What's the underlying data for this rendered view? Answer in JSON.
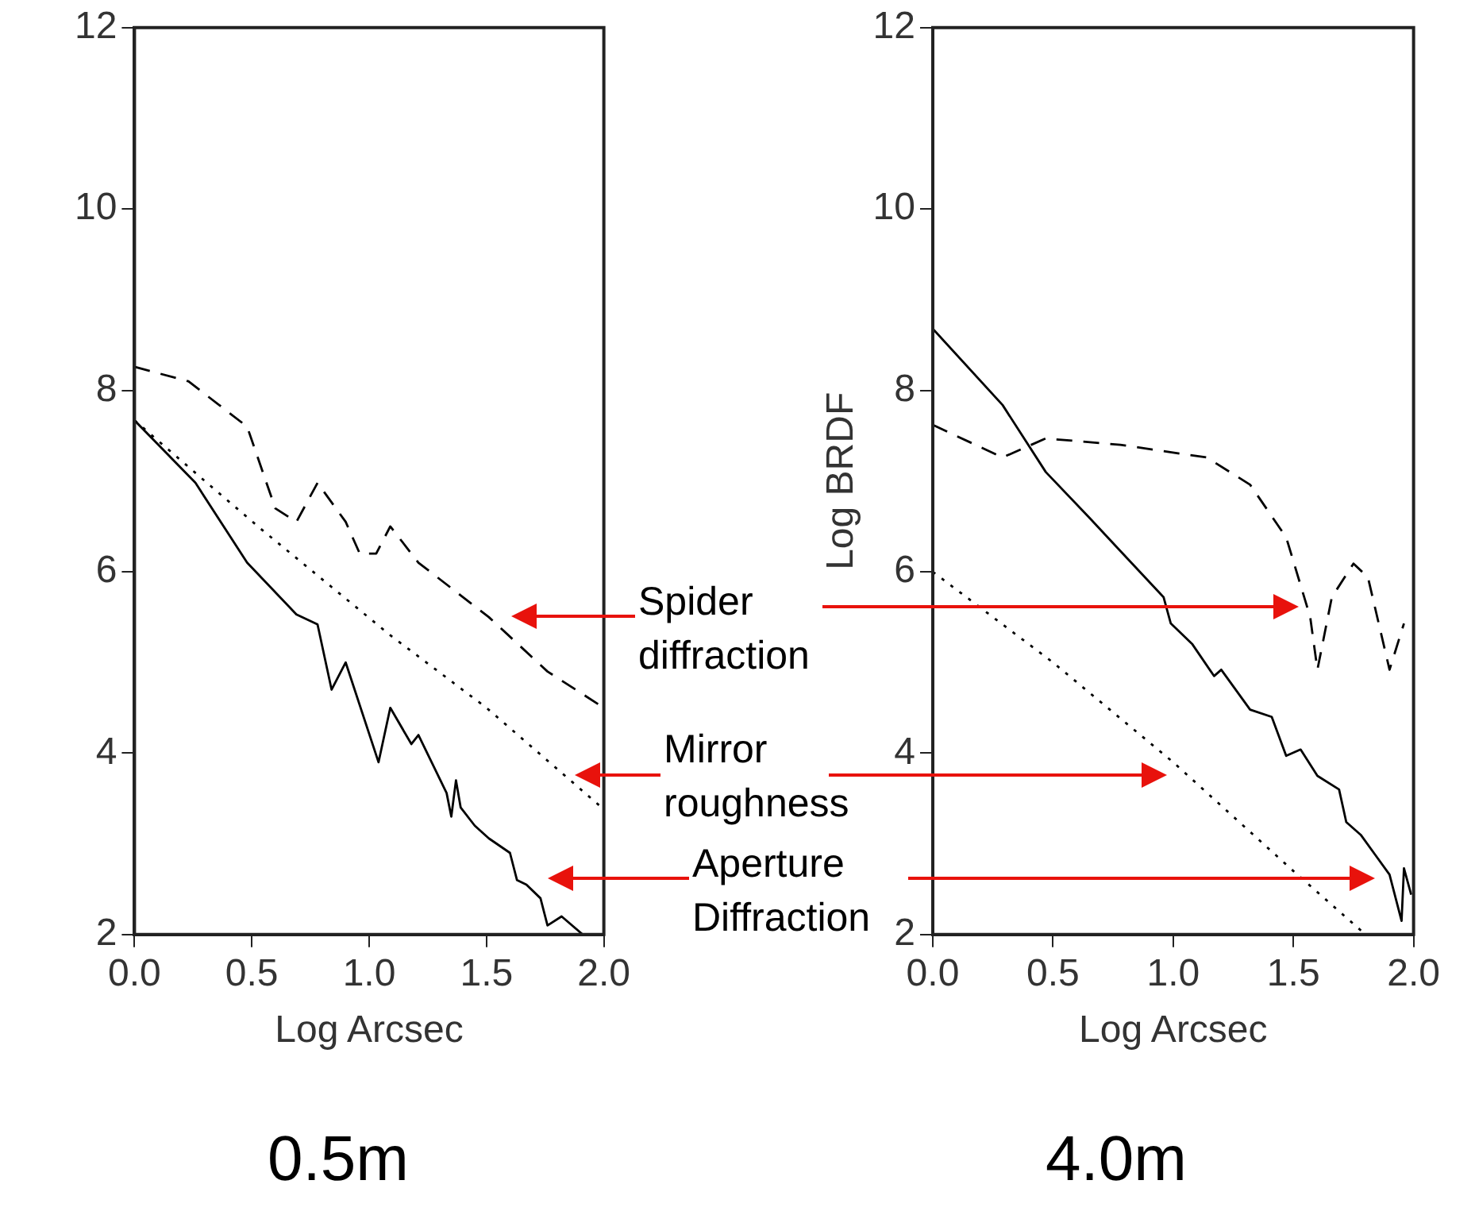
{
  "chart_data": [
    {
      "type": "line",
      "title": "0.5m",
      "xlabel": "Log Arcsec",
      "xlim": [
        0,
        2
      ],
      "xticks": [
        {
          "value": 0,
          "label": "0.0"
        },
        {
          "value": 0.5,
          "label": "0.5"
        },
        {
          "value": 1,
          "label": "1.0"
        },
        {
          "value": 1.5,
          "label": "1.5"
        },
        {
          "value": 2,
          "label": "2.0"
        }
      ],
      "ylim": [
        2,
        12
      ],
      "yticks": [
        2,
        4,
        6,
        8,
        10,
        12
      ],
      "grid": false,
      "legend": false,
      "marker": "none",
      "annotations": [
        "Spider diffraction",
        "Mirror roughness",
        "Aperture Diffraction"
      ],
      "series": [
        {
          "color": "#000000",
          "line_style": "dashed",
          "x": [
            0,
            0.23,
            0.48,
            0.6,
            0.69,
            0.78,
            0.9,
            0.96,
            1.03,
            1.09,
            1.21,
            1.51,
            1.76,
            2.0
          ],
          "values": [
            8.26,
            8.1,
            7.6,
            6.7,
            6.55,
            6.98,
            6.55,
            6.2,
            6.2,
            6.5,
            6.1,
            5.5,
            4.9,
            4.5
          ]
        },
        {
          "color": "#000000",
          "line_style": "dotted",
          "x": [
            0,
            0.3,
            0.54,
            1.09,
            1.5,
            2.0
          ],
          "values": [
            7.67,
            7.0,
            6.47,
            5.3,
            4.5,
            3.38
          ]
        },
        {
          "color": "#000000",
          "line_style": "solid",
          "x": [
            0,
            0.26,
            0.48,
            0.69,
            0.78,
            0.84,
            0.9,
            1.04,
            1.09,
            1.18,
            1.21,
            1.33,
            1.35,
            1.37,
            1.39,
            1.45,
            1.51,
            1.6,
            1.63,
            1.67,
            1.73,
            1.76,
            1.82,
            1.91
          ],
          "values": [
            7.67,
            6.98,
            6.1,
            5.53,
            5.42,
            4.7,
            5.0,
            3.9,
            4.5,
            4.1,
            4.2,
            3.56,
            3.3,
            3.7,
            3.4,
            3.2,
            3.06,
            2.9,
            2.6,
            2.55,
            2.4,
            2.1,
            2.2,
            2.0
          ]
        }
      ]
    },
    {
      "type": "line",
      "title": "4.0m",
      "xlabel": "Log Arcsec",
      "ylabel": "Log BRDF",
      "xlim": [
        0,
        2
      ],
      "xticks": [
        {
          "value": 0,
          "label": "0.0"
        },
        {
          "value": 0.5,
          "label": "0.5"
        },
        {
          "value": 1,
          "label": "1.0"
        },
        {
          "value": 1.5,
          "label": "1.5"
        },
        {
          "value": 2,
          "label": "2.0"
        }
      ],
      "ylim": [
        2,
        12
      ],
      "yticks": [
        2,
        4,
        6,
        8,
        10,
        12
      ],
      "grid": false,
      "legend": false,
      "marker": "none",
      "series": [
        {
          "color": "#000000",
          "line_style": "solid",
          "x": [
            0,
            0.29,
            0.47,
            0.65,
            0.78,
            0.96,
            0.99,
            1.08,
            1.17,
            1.2,
            1.32,
            1.41,
            1.47,
            1.53,
            1.6,
            1.69,
            1.72,
            1.78,
            1.84,
            1.9,
            1.95,
            1.96,
            1.99
          ],
          "values": [
            8.68,
            7.84,
            7.1,
            6.6,
            6.23,
            5.72,
            5.43,
            5.2,
            4.85,
            4.92,
            4.48,
            4.4,
            3.97,
            4.04,
            3.75,
            3.6,
            3.24,
            3.1,
            2.88,
            2.66,
            2.15,
            2.73,
            2.44
          ]
        },
        {
          "color": "#000000",
          "line_style": "dashed",
          "x": [
            0,
            0.29,
            0.47,
            0.78,
            1.14,
            1.32,
            1.47,
            1.57,
            1.6,
            1.66,
            1.75,
            1.81,
            1.9,
            1.96
          ],
          "values": [
            7.62,
            7.26,
            7.47,
            7.4,
            7.26,
            6.96,
            6.38,
            5.5,
            4.92,
            5.72,
            6.09,
            5.94,
            4.92,
            5.43
          ]
        },
        {
          "color": "#000000",
          "line_style": "dotted",
          "x": [
            0,
            0.5,
            1.0,
            1.5,
            1.8
          ],
          "values": [
            6.0,
            5.0,
            3.9,
            2.7,
            2.0
          ]
        }
      ]
    }
  ]
}
